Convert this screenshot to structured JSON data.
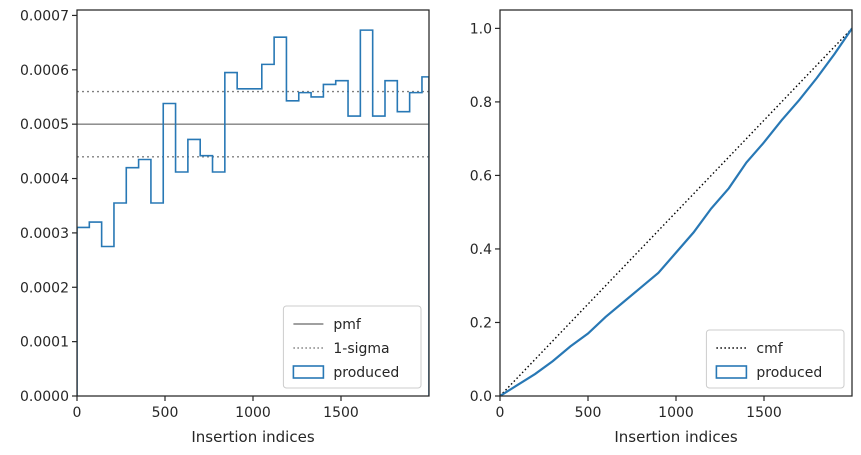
{
  "chart_data": [
    {
      "type": "step",
      "title": "",
      "xlabel": "Insertion indices",
      "ylabel": "",
      "xlim": [
        0,
        2000
      ],
      "ylim": [
        0,
        0.00071
      ],
      "xticks": [
        0,
        500,
        1000,
        1500
      ],
      "xtick_labels": [
        "0",
        "500",
        "1000",
        "1500"
      ],
      "yticks": [
        0,
        0.0001,
        0.0002,
        0.0003,
        0.0004,
        0.0005,
        0.0006,
        0.0007
      ],
      "ytick_labels": [
        "0.0000",
        "0.0001",
        "0.0002",
        "0.0003",
        "0.0004",
        "0.0005",
        "0.0006",
        "0.0007"
      ],
      "grid": false,
      "legend_position": "lower-right",
      "bin_edges": [
        0,
        70,
        140,
        210,
        280,
        350,
        420,
        490,
        560,
        630,
        700,
        770,
        840,
        910,
        980,
        1050,
        1120,
        1190,
        1260,
        1330,
        1400,
        1470,
        1540,
        1610,
        1680,
        1750,
        1820,
        1890,
        1960,
        2000
      ],
      "reference_lines": [
        {
          "name": "pmf",
          "y": 0.0005,
          "style": "solid",
          "color": "#808080"
        },
        {
          "name": "1-sigma",
          "y": [
            0.00044,
            0.00056
          ],
          "style": "dotted",
          "color": "#808080"
        }
      ],
      "series": [
        {
          "name": "produced",
          "color": "#2878b5",
          "values": [
            0.00031,
            0.00032,
            0.000275,
            0.000355,
            0.00042,
            0.000435,
            0.000355,
            0.000538,
            0.000412,
            0.000472,
            0.000442,
            0.000412,
            0.000595,
            0.000565,
            0.000565,
            0.00061,
            0.00066,
            0.000543,
            0.000558,
            0.00055,
            0.000573,
            0.00058,
            0.000515,
            0.000673,
            0.000515,
            0.00058,
            0.000523,
            0.000558,
            0.000587
          ]
        }
      ]
    },
    {
      "type": "line",
      "title": "",
      "xlabel": "Insertion indices",
      "ylabel": "",
      "xlim": [
        0,
        2000
      ],
      "ylim": [
        0,
        1.05
      ],
      "xticks": [
        0,
        500,
        1000,
        1500
      ],
      "xtick_labels": [
        "0",
        "500",
        "1000",
        "1500"
      ],
      "yticks": [
        0,
        0.2,
        0.4,
        0.6,
        0.8,
        1.0
      ],
      "ytick_labels": [
        "0.0",
        "0.2",
        "0.4",
        "0.6",
        "0.8",
        "1.0"
      ],
      "grid": false,
      "legend_position": "lower-right",
      "series": [
        {
          "name": "cmf",
          "style": "dotted",
          "color": "#000000",
          "x": [
            0,
            2000
          ],
          "y": [
            0,
            1.0
          ]
        },
        {
          "name": "produced",
          "style": "solid",
          "color": "#2878b5",
          "x": [
            0,
            100,
            200,
            300,
            400,
            500,
            600,
            700,
            800,
            900,
            1000,
            1100,
            1200,
            1300,
            1400,
            1500,
            1600,
            1700,
            1800,
            1900,
            2000
          ],
          "y": [
            0,
            0.03,
            0.06,
            0.095,
            0.135,
            0.17,
            0.215,
            0.255,
            0.295,
            0.335,
            0.39,
            0.445,
            0.51,
            0.565,
            0.635,
            0.69,
            0.75,
            0.805,
            0.865,
            0.93,
            1.0
          ]
        }
      ]
    }
  ]
}
